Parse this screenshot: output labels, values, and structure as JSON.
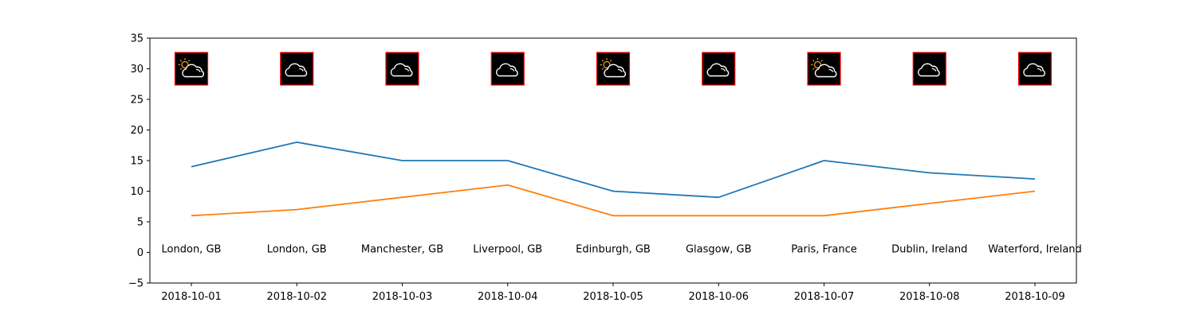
{
  "chart_data": {
    "type": "line",
    "title": "",
    "xlabel": "",
    "ylabel": "",
    "x": [
      "2018-10-01",
      "2018-10-02",
      "2018-10-03",
      "2018-10-04",
      "2018-10-05",
      "2018-10-06",
      "2018-10-07",
      "2018-10-08",
      "2018-10-09"
    ],
    "ylim": [
      -5,
      35
    ],
    "yticks": [
      -5,
      0,
      5,
      10,
      15,
      20,
      25,
      30,
      35
    ],
    "grid": false,
    "series": [
      {
        "color": "#1f77b4",
        "values": [
          14,
          18,
          15,
          15,
          10,
          9,
          15,
          13,
          12
        ]
      },
      {
        "color": "#ff7f0e",
        "values": [
          6,
          7,
          9,
          11,
          6,
          6,
          6,
          8,
          10
        ]
      }
    ],
    "annotations": {
      "city_labels": [
        "London, GB",
        "London, GB",
        "Manchester, GB",
        "Liverpool, GB",
        "Edinburgh, GB",
        "Glasgow, GB",
        "Paris, France",
        "Dublin, Ireland",
        "Waterford, Ireland"
      ],
      "city_label_y": 0,
      "weather_icons": [
        "partly-sunny-icon",
        "cloud-icon",
        "cloud-icon",
        "cloud-icon",
        "partly-sunny-icon",
        "cloud-icon",
        "partly-sunny-icon",
        "cloud-icon",
        "cloud-icon"
      ],
      "icon_y": 30,
      "icon_box_color": "#000000",
      "icon_border_color": "#ff0000",
      "sun_color": "#f5a623"
    }
  }
}
